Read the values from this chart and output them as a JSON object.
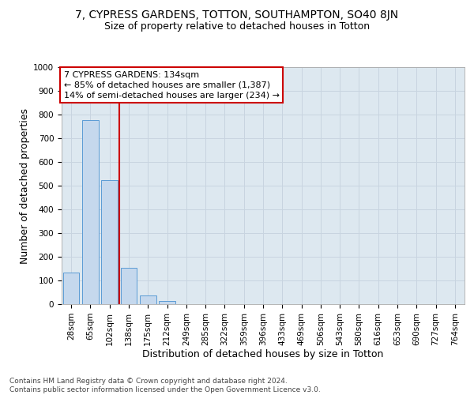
{
  "title": "7, CYPRESS GARDENS, TOTTON, SOUTHAMPTON, SO40 8JN",
  "subtitle": "Size of property relative to detached houses in Totton",
  "xlabel": "Distribution of detached houses by size in Totton",
  "ylabel": "Number of detached properties",
  "bar_labels": [
    "28sqm",
    "65sqm",
    "102sqm",
    "138sqm",
    "175sqm",
    "212sqm",
    "249sqm",
    "285sqm",
    "322sqm",
    "359sqm",
    "396sqm",
    "433sqm",
    "469sqm",
    "506sqm",
    "543sqm",
    "580sqm",
    "616sqm",
    "653sqm",
    "690sqm",
    "727sqm",
    "764sqm"
  ],
  "bar_values": [
    133,
    778,
    523,
    155,
    38,
    13,
    0,
    0,
    0,
    0,
    0,
    0,
    0,
    0,
    0,
    0,
    0,
    0,
    0,
    0,
    0
  ],
  "bar_color": "#c5d8ed",
  "bar_edge_color": "#5b9bd5",
  "vline_color": "#cc0000",
  "annotation_box_text": "7 CYPRESS GARDENS: 134sqm\n← 85% of detached houses are smaller (1,387)\n14% of semi-detached houses are larger (234) →",
  "annotation_box_color": "#cc0000",
  "annotation_box_bg": "#ffffff",
  "ylim": [
    0,
    1000
  ],
  "yticks": [
    0,
    100,
    200,
    300,
    400,
    500,
    600,
    700,
    800,
    900,
    1000
  ],
  "grid_color": "#c8d4e0",
  "bg_color": "#dde8f0",
  "footer": "Contains HM Land Registry data © Crown copyright and database right 2024.\nContains public sector information licensed under the Open Government Licence v3.0.",
  "title_fontsize": 10,
  "subtitle_fontsize": 9,
  "axis_label_fontsize": 9,
  "tick_fontsize": 7.5,
  "annotation_fontsize": 8,
  "footer_fontsize": 6.5
}
